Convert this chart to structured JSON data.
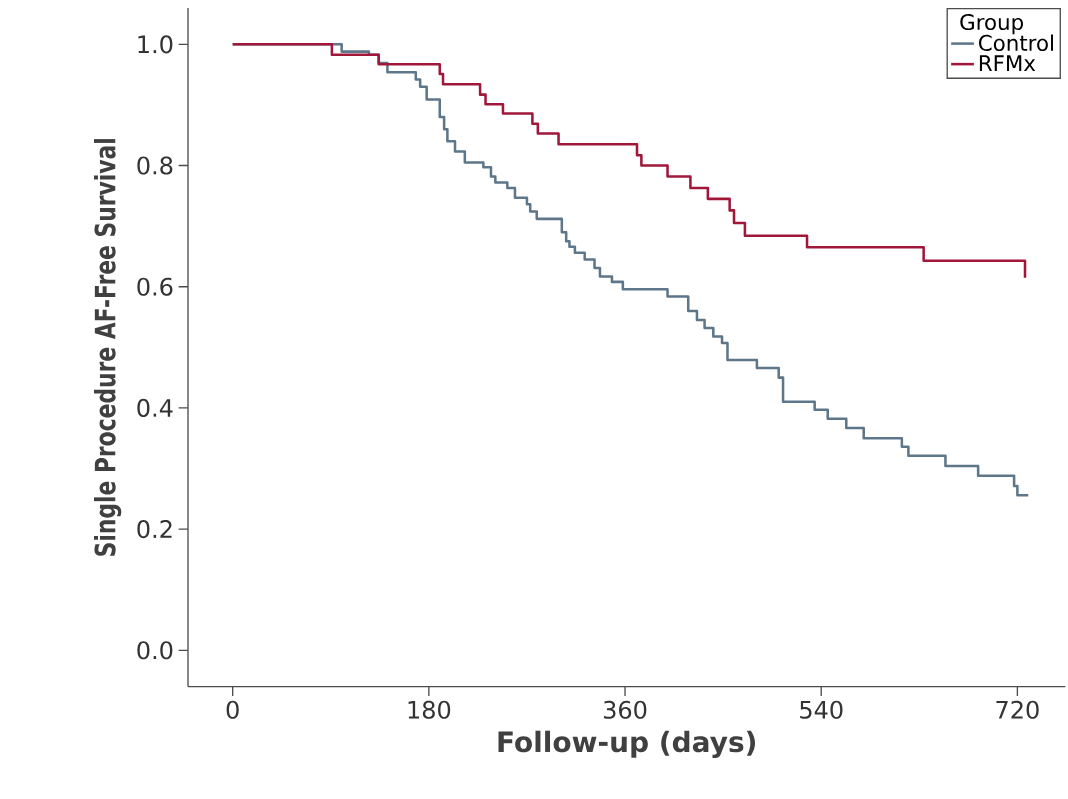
{
  "chart_data": {
    "type": "step",
    "xlabel": "Follow-up (days)",
    "ylabel": "Single Procedure AF-Free Survival",
    "legend_title": "Group",
    "legend": "top right",
    "xlim": [
      -41,
      764
    ],
    "ylim": [
      -0.06,
      1.06
    ],
    "xticks": [
      0,
      180,
      360,
      540,
      720
    ],
    "yticks": [
      {
        "value": 0,
        "label": "0.0"
      },
      {
        "value": 0.2,
        "label": "0.2"
      },
      {
        "value": 0.4,
        "label": "0.4"
      },
      {
        "value": 0.6,
        "label": "0.6"
      },
      {
        "value": 0.8,
        "label": "0.8"
      },
      {
        "value": 1,
        "label": "1.0"
      }
    ],
    "series": [
      {
        "name": "Control",
        "color": "#5e7689",
        "x": [
          0,
          100,
          125,
          134,
          142,
          168,
          172,
          178,
          190,
          194,
          197,
          204,
          213,
          230,
          237,
          241,
          252,
          259,
          270,
          273,
          279,
          302,
          306,
          309,
          314,
          323,
          332,
          337,
          348,
          358,
          399,
          418,
          426,
          433,
          441,
          449,
          454,
          481,
          501,
          505,
          534,
          546,
          563,
          579,
          614,
          620,
          654,
          684,
          717,
          720,
          730
        ],
        "values": [
          1.0,
          0.988,
          0.983,
          0.969,
          0.954,
          0.942,
          0.93,
          0.909,
          0.88,
          0.86,
          0.84,
          0.823,
          0.805,
          0.797,
          0.782,
          0.772,
          0.763,
          0.747,
          0.736,
          0.724,
          0.712,
          0.69,
          0.675,
          0.666,
          0.656,
          0.645,
          0.631,
          0.617,
          0.608,
          0.596,
          0.584,
          0.56,
          0.545,
          0.532,
          0.518,
          0.507,
          0.479,
          0.466,
          0.45,
          0.41,
          0.397,
          0.382,
          0.367,
          0.35,
          0.336,
          0.321,
          0.304,
          0.288,
          0.271,
          0.256,
          0.256
        ]
      },
      {
        "name": "RFMx",
        "color": "#a0173a",
        "x": [
          0,
          91,
          134,
          190,
          193,
          227,
          232,
          248,
          275,
          280,
          299,
          371,
          375,
          399,
          420,
          436,
          456,
          460,
          470,
          527,
          634,
          727,
          727
        ],
        "values": [
          1.0,
          0.983,
          0.967,
          0.951,
          0.934,
          0.917,
          0.901,
          0.886,
          0.869,
          0.853,
          0.835,
          0.817,
          0.8,
          0.782,
          0.763,
          0.745,
          0.726,
          0.705,
          0.684,
          0.665,
          0.643,
          0.643,
          0.615
        ]
      }
    ]
  }
}
